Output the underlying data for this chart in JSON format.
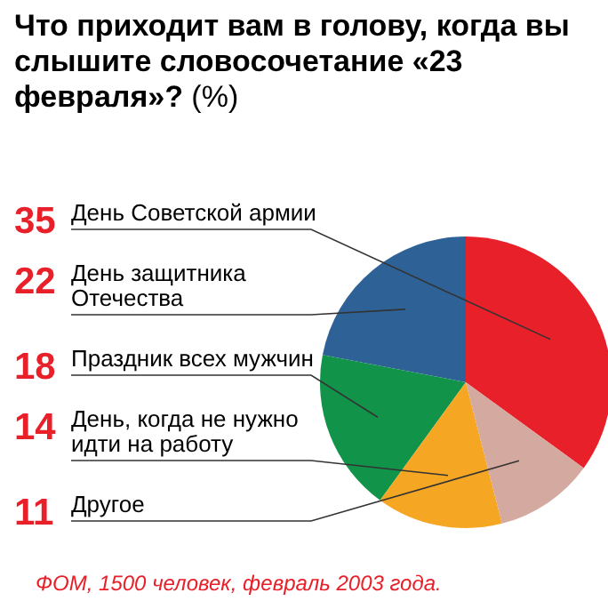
{
  "chart_data": {
    "type": "pie",
    "title": "Что приходит вам в голову, когда вы слышите словосочетание «23 февраля»?",
    "subtitle": "(%)",
    "categories": [
      "День Советской армии",
      "День защитника Отечества",
      "Праздник всех мужчин",
      "День, когда не нужно идти на работу",
      "Другое"
    ],
    "values": [
      35,
      22,
      18,
      14,
      11
    ],
    "colors": [
      "#e8202a",
      "#2e6296",
      "#11934a",
      "#f5a623",
      "#d4a9a0"
    ],
    "data_labels": true,
    "annotations": [
      "ФОМ, 1500 человек, февраль 2003 года."
    ]
  }
}
